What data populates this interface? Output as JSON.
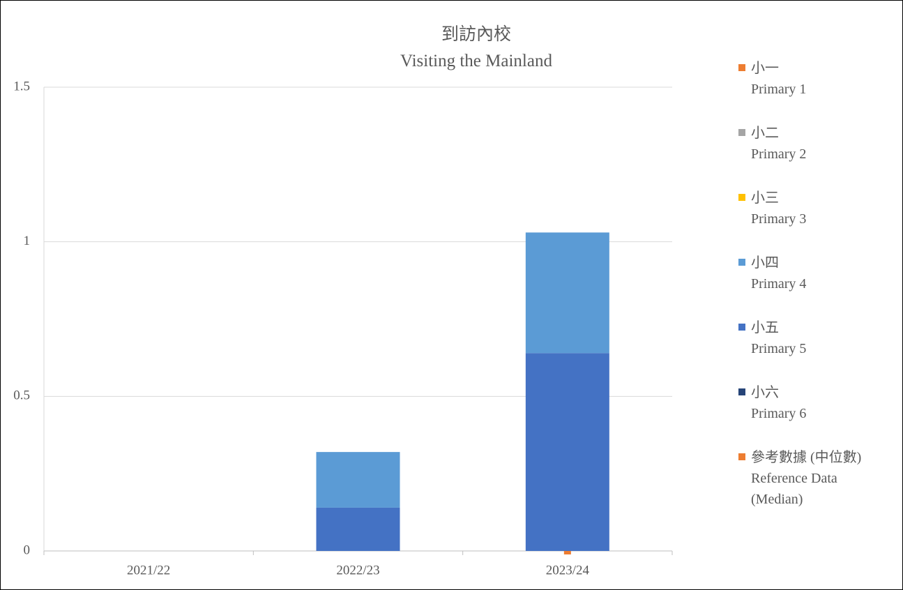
{
  "chart_data": {
    "type": "bar",
    "stacked": true,
    "title": "到訪內校\nVisiting the Mainland",
    "categories": [
      "2021/22",
      "2022/23",
      "2023/24"
    ],
    "series": [
      {
        "name": "小一\nPrimary 1",
        "color": "#ed7d31",
        "values": [
          0,
          0,
          0
        ]
      },
      {
        "name": "小二\nPrimary 2",
        "color": "#a5a5a5",
        "values": [
          0,
          0,
          0
        ]
      },
      {
        "name": "小三\nPrimary 3",
        "color": "#ffc000",
        "values": [
          0,
          0,
          0
        ]
      },
      {
        "name": "小四\nPrimary 4",
        "color": "#5b9bd5",
        "values": [
          0,
          0.18,
          0.39
        ]
      },
      {
        "name": "小五\nPrimary 5",
        "color": "#4472c4",
        "values": [
          0,
          0.14,
          0.64
        ]
      },
      {
        "name": "小六\nPrimary 6",
        "color": "#264478",
        "values": [
          0,
          0,
          0
        ]
      },
      {
        "name": "參考數據 (中位數)\nReference Data\n(Median)",
        "color": "#ed7d31",
        "type": "marker",
        "values": [
          null,
          null,
          0
        ]
      }
    ],
    "ylim": [
      0,
      1.5
    ],
    "yticks": [
      0,
      0.5,
      1,
      1.5
    ],
    "grid": true,
    "legend": "right"
  }
}
